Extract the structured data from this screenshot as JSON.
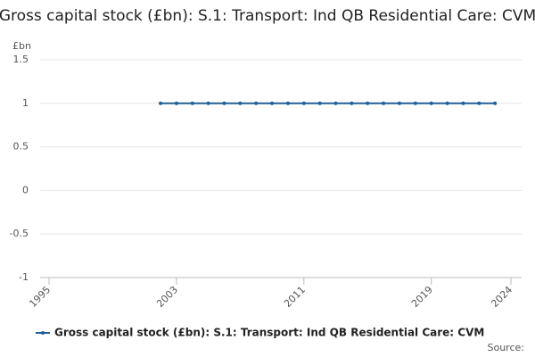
{
  "chart_data": {
    "type": "line",
    "title": "Gross capital stock (£bn): S.1: Transport: Ind QB Residential Care: CVM",
    "y_unit": "£bn",
    "source": "Source:",
    "x": [
      2002,
      2003,
      2004,
      2005,
      2006,
      2007,
      2008,
      2009,
      2010,
      2011,
      2012,
      2013,
      2014,
      2015,
      2016,
      2017,
      2018,
      2019,
      2020,
      2021,
      2022,
      2023
    ],
    "series": [
      {
        "name": "Gross capital stock (£bn): S.1: Transport: Ind QB Residential Care: CVM",
        "color": "#206095",
        "values": [
          1,
          1,
          1,
          1,
          1,
          1,
          1,
          1,
          1,
          1,
          1,
          1,
          1,
          1,
          1,
          1,
          1,
          1,
          1,
          1,
          1,
          1
        ]
      }
    ],
    "xlim": [
      1995,
      2024
    ],
    "xticks": [
      1995,
      2003,
      2011,
      2019,
      2024
    ],
    "ylim": [
      -1,
      1.5
    ],
    "yticks": [
      -1,
      -0.5,
      0,
      0.5,
      1,
      1.5
    ],
    "grid": true
  }
}
